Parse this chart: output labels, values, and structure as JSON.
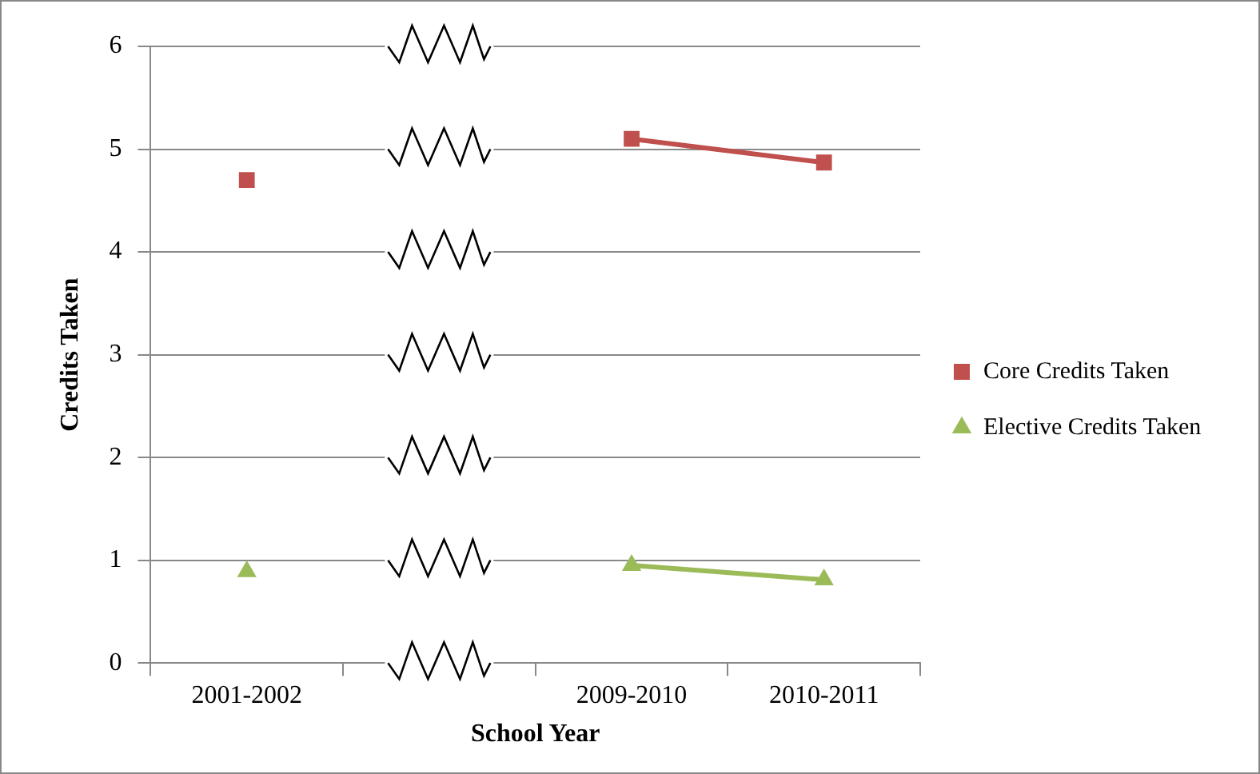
{
  "chart_data": {
    "type": "line",
    "xlabel": "School Year",
    "ylabel": "Credits Taken",
    "categories": [
      "2001-2002",
      null,
      "2009-2010",
      "2010-2011"
    ],
    "series": [
      {
        "name": "Core Credits Taken",
        "color": "#c0504d",
        "marker": "square",
        "values": [
          4.7,
          null,
          5.1,
          4.87
        ]
      },
      {
        "name": "Elective Credits Taken",
        "color": "#9bbb59",
        "marker": "triangle",
        "values": [
          0.89,
          null,
          0.95,
          0.81
        ]
      }
    ],
    "ylim": [
      0,
      6
    ],
    "yticks": [
      0,
      1,
      2,
      3,
      4,
      5,
      6
    ],
    "grid": "y",
    "legend": "right"
  }
}
